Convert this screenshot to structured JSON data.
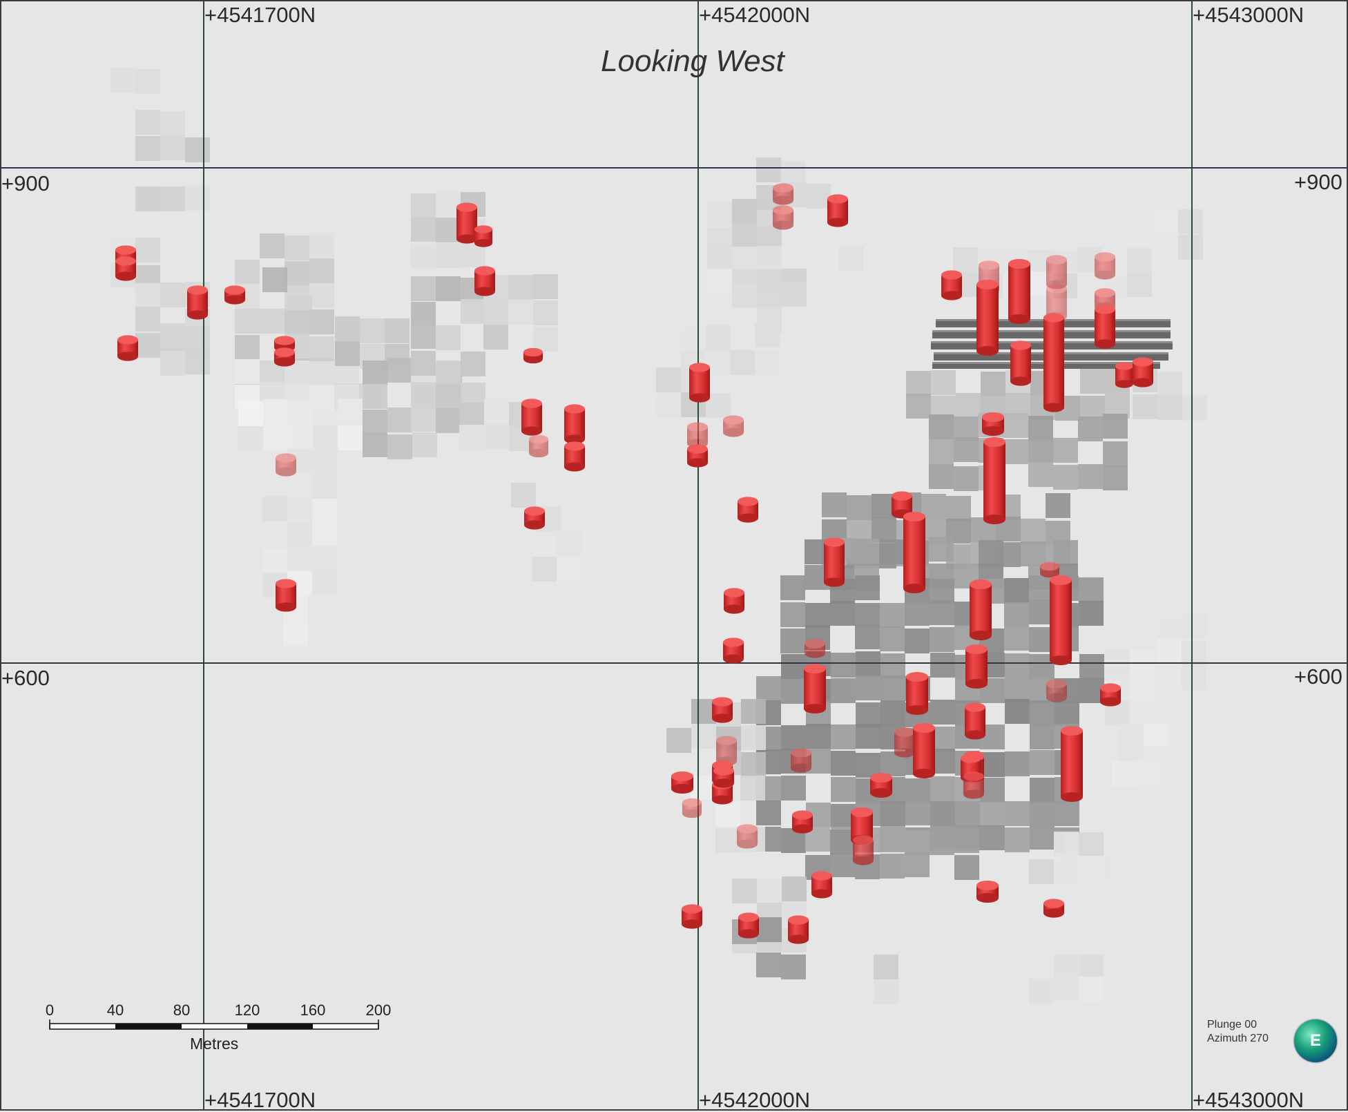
{
  "view": {
    "title": "Looking West",
    "plunge_label": "Plunge 00",
    "azimuth_label": "Azimuth 270",
    "compass_letter": "E"
  },
  "grid": {
    "northing_labels": [
      "+4541700N",
      "+4542000N",
      "+4543000N"
    ],
    "elevation_labels": [
      "+900",
      "+600"
    ]
  },
  "scale_bar": {
    "ticks": [
      "0",
      "40",
      "80",
      "120",
      "160",
      "200"
    ],
    "units": "Metres"
  },
  "colors": {
    "background": "#e6e6e6",
    "grid_vertical": "#2f4a30",
    "grid_horizontal": "#2d3550",
    "drillhole": "#e03434",
    "block_model": "#808080"
  }
}
